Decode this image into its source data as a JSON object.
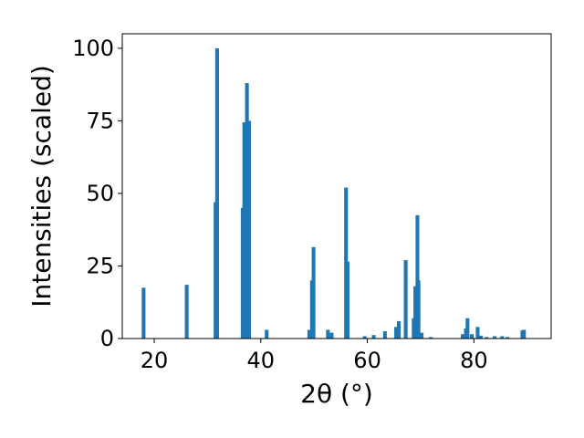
{
  "chart_data": {
    "type": "bar",
    "title": "",
    "xlabel": "2θ (°)",
    "ylabel": "Intensities (scaled)",
    "xlim": [
      14.0,
      94.5
    ],
    "ylim": [
      0,
      105
    ],
    "xticks": [
      20,
      40,
      60,
      80
    ],
    "yticks": [
      0,
      25,
      50,
      75,
      100
    ],
    "grid": false,
    "legend": "none",
    "bar_width": 0.7,
    "color": "#1f77b4",
    "x": [
      18.0,
      26.1,
      31.5,
      31.8,
      36.6,
      36.9,
      37.4,
      37.8,
      41.1,
      49.1,
      49.6,
      49.9,
      52.6,
      53.3,
      56.0,
      56.3,
      59.5,
      61.2,
      63.3,
      65.4,
      65.9,
      67.2,
      68.7,
      69.0,
      69.4,
      69.6,
      70.2,
      71.9,
      77.9,
      78.5,
      78.8,
      79.6,
      80.7,
      81.3,
      82.4,
      83.9,
      85.3,
      86.3,
      89.1,
      89.4
    ],
    "values": [
      17.5,
      18.5,
      47.0,
      100.0,
      45.0,
      74.5,
      88.0,
      75.0,
      3.0,
      3.0,
      20.0,
      31.5,
      3.0,
      2.0,
      52.0,
      26.5,
      0.8,
      1.2,
      2.5,
      4.0,
      6.0,
      27.0,
      7.0,
      18.0,
      42.5,
      20.0,
      2.0,
      0.5,
      1.5,
      3.5,
      7.0,
      1.5,
      4.0,
      1.0,
      0.5,
      0.8,
      0.8,
      0.5,
      2.8,
      3.0
    ]
  }
}
